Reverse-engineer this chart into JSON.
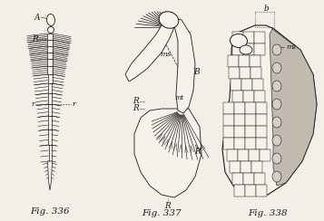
{
  "fig_width": 3.57,
  "fig_height": 2.44,
  "dpi": 100,
  "bg_color": "#f2efe9",
  "line_color": "#1a1a1a",
  "fill_light": "#f5f2eb",
  "fill_gray": "#b8b0a5",
  "fill_mid": "#d4cec8",
  "caption_fontsize": 7.5,
  "label_fontsize": 6.5,
  "captions": [
    "Fig. 336",
    "Fig. 337",
    "Fig. 338"
  ]
}
